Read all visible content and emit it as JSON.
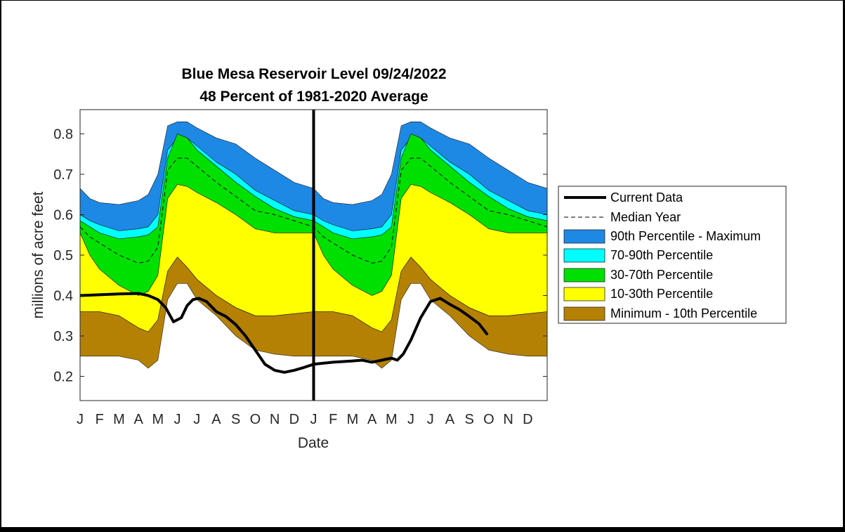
{
  "chart_data": {
    "type": "area",
    "title": [
      "Blue Mesa Reservoir Level 09/24/2022",
      "48 Percent of 1981-2020 Average"
    ],
    "xlabel": "Date",
    "ylabel": "millions of acre feet",
    "ylim": [
      0.14,
      0.86
    ],
    "xlim": [
      0,
      24
    ],
    "yticks": [
      0.2,
      0.3,
      0.4,
      0.5,
      0.6,
      0.7,
      0.8
    ],
    "ytick_labels": [
      "0.2",
      "0.3",
      "0.4",
      "0.5",
      "0.6",
      "0.7",
      "0.8"
    ],
    "month_labels": [
      "J",
      "F",
      "M",
      "A",
      "M",
      "J",
      "J",
      "A",
      "S",
      "O",
      "N",
      "D",
      "J",
      "F",
      "M",
      "A",
      "M",
      "J",
      "J",
      "A",
      "S",
      "O",
      "N",
      "D"
    ],
    "year_divider_x": 12,
    "legend_position": "outside-right",
    "grid": false,
    "colors": {
      "p90_max": "#1e88e5",
      "p70_90": "#00ffff",
      "p30_70": "#00e000",
      "p10_30": "#ffff00",
      "min_10": "#b58105",
      "current": "#000000",
      "median": "#000000"
    },
    "legend": [
      {
        "key": "current",
        "label": "Current Data",
        "style": "thickline"
      },
      {
        "key": "median",
        "label": "Median Year",
        "style": "dashed"
      },
      {
        "key": "p90_max",
        "label": "90th Percentile - Maximum",
        "style": "patch"
      },
      {
        "key": "p70_90",
        "label": "70-90th Percentile",
        "style": "patch"
      },
      {
        "key": "p30_70",
        "label": "30-70th Percentile",
        "style": "patch"
      },
      {
        "key": "p10_30",
        "label": "10-30th Percentile",
        "style": "patch"
      },
      {
        "key": "min_10",
        "label": "Minimum - 10th Percentile",
        "style": "patch"
      }
    ],
    "x": [
      0,
      0.5,
      1,
      2,
      3,
      3.5,
      4,
      4.5,
      5,
      5.5,
      6,
      7,
      8,
      9,
      10,
      11,
      12
    ],
    "bands": {
      "max": [
        0.665,
        0.64,
        0.63,
        0.625,
        0.635,
        0.65,
        0.7,
        0.82,
        0.83,
        0.83,
        0.815,
        0.79,
        0.775,
        0.74,
        0.71,
        0.68,
        0.665
      ],
      "p90": [
        0.6,
        0.585,
        0.575,
        0.56,
        0.565,
        0.57,
        0.6,
        0.76,
        0.79,
        0.79,
        0.77,
        0.73,
        0.7,
        0.66,
        0.635,
        0.61,
        0.6
      ],
      "p70": [
        0.585,
        0.57,
        0.555,
        0.54,
        0.545,
        0.55,
        0.57,
        0.74,
        0.8,
        0.79,
        0.76,
        0.72,
        0.68,
        0.645,
        0.615,
        0.595,
        0.585
      ],
      "median": [
        0.57,
        0.545,
        0.53,
        0.5,
        0.48,
        0.485,
        0.52,
        0.71,
        0.74,
        0.74,
        0.72,
        0.68,
        0.645,
        0.61,
        0.6,
        0.585,
        0.57
      ],
      "p30": [
        0.555,
        0.5,
        0.465,
        0.425,
        0.4,
        0.41,
        0.45,
        0.64,
        0.675,
        0.67,
        0.655,
        0.63,
        0.6,
        0.565,
        0.555,
        0.555,
        0.555
      ],
      "p10": [
        0.36,
        0.36,
        0.36,
        0.35,
        0.32,
        0.31,
        0.34,
        0.46,
        0.495,
        0.47,
        0.44,
        0.4,
        0.37,
        0.35,
        0.35,
        0.355,
        0.36
      ],
      "min": [
        0.25,
        0.25,
        0.25,
        0.25,
        0.24,
        0.22,
        0.24,
        0.39,
        0.43,
        0.43,
        0.39,
        0.35,
        0.3,
        0.265,
        0.255,
        0.25,
        0.25
      ]
    },
    "current": {
      "x": [
        0,
        1,
        2,
        3,
        3.5,
        4,
        4.4,
        4.8,
        5.2,
        5.5,
        5.8,
        6.1,
        6.5,
        7,
        7.5,
        8,
        8.5,
        9,
        9.5,
        10,
        10.5,
        11,
        11.5,
        12,
        13,
        14,
        14.5,
        15,
        15.5,
        16,
        16.3,
        16.6,
        17,
        17.5,
        18,
        18.5,
        19,
        19.5,
        20,
        20.5,
        20.9
      ],
      "y": [
        0.4,
        0.402,
        0.404,
        0.405,
        0.4,
        0.39,
        0.37,
        0.335,
        0.345,
        0.375,
        0.39,
        0.393,
        0.385,
        0.36,
        0.348,
        0.328,
        0.3,
        0.265,
        0.23,
        0.215,
        0.21,
        0.215,
        0.222,
        0.23,
        0.235,
        0.238,
        0.24,
        0.235,
        0.24,
        0.245,
        0.24,
        0.255,
        0.29,
        0.345,
        0.385,
        0.393,
        0.378,
        0.365,
        0.348,
        0.33,
        0.305
      ]
    }
  }
}
